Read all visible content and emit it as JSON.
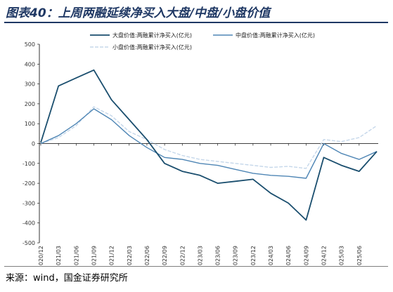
{
  "title": "图表40：上周两融延续净买入大盘/中盘/小盘价值",
  "source": "来源：wind，国金证券研究所",
  "chart_data": {
    "type": "line",
    "title": "图表40：上周两融延续净买入大盘/中盘/小盘价值",
    "xlabel": "",
    "ylabel": "",
    "ylim": [
      -500,
      500
    ],
    "yticks": [
      -500,
      -400,
      -300,
      -200,
      -100,
      0,
      100,
      200,
      300,
      400,
      500
    ],
    "grid": false,
    "legend_position": "top",
    "x": [
      "2020/12",
      "2021/03",
      "2021/06",
      "2021/09",
      "2021/12",
      "2022/03",
      "2022/06",
      "2022/09",
      "2022/12",
      "2023/03",
      "2023/06",
      "2023/09",
      "2023/12",
      "2024/03",
      "2024/06",
      "2024/09",
      "2024/12",
      "2025/03",
      "2025/06",
      "2025/08"
    ],
    "xticks": [
      "2020/12",
      "2021/03",
      "2021/06",
      "2021/09",
      "2021/12",
      "2022/03",
      "2022/06",
      "2022/09",
      "2022/12",
      "2023/03",
      "2023/06",
      "2023/09",
      "2023/12",
      "2024/03",
      "2024/06",
      "2024/09",
      "2024/12",
      "2025/03",
      "2025/06"
    ],
    "series": [
      {
        "name": "大盘价值:两融累计净买入(亿元)",
        "color": "#1a4e6e",
        "values": [
          5,
          290,
          330,
          370,
          220,
          120,
          20,
          -100,
          -140,
          -160,
          -200,
          -190,
          -180,
          -250,
          -300,
          -385,
          -70,
          -110,
          -140,
          -40
        ]
      },
      {
        "name": "中盘价值:两融累计净买入(亿元)",
        "color": "#4f86b5",
        "values": [
          0,
          40,
          100,
          175,
          120,
          40,
          -20,
          -70,
          -80,
          -100,
          -110,
          -130,
          -150,
          -160,
          -165,
          -175,
          0,
          -50,
          -80,
          -40
        ]
      },
      {
        "name": "小盘价值:两融累计净买入(亿元)",
        "color": "#c5d7ea",
        "values": [
          0,
          30,
          90,
          185,
          140,
          60,
          20,
          -30,
          -60,
          -80,
          -90,
          -100,
          -110,
          -120,
          -115,
          -125,
          20,
          10,
          30,
          90
        ]
      }
    ]
  }
}
